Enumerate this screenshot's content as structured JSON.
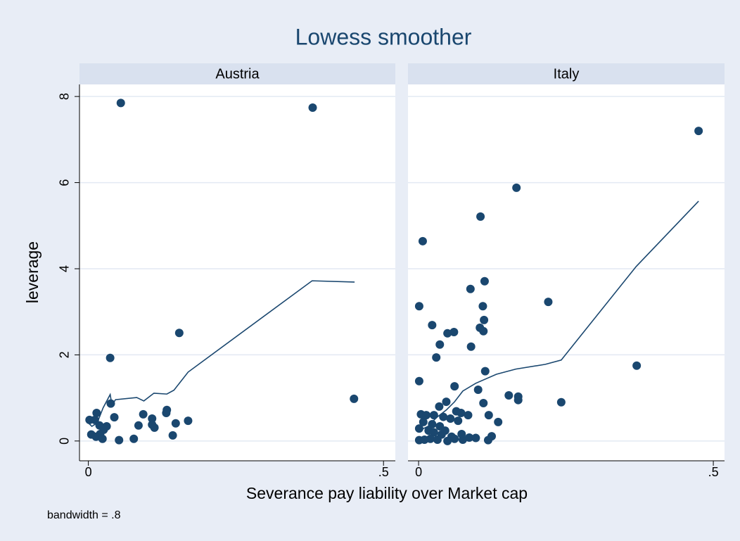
{
  "title": "Lowess smoother",
  "xlabel": "Severance pay liability over Market cap",
  "ylabel": "leverage",
  "note": "bandwidth = .8",
  "chart_data": [
    {
      "type": "scatter",
      "panel_title": "Austria",
      "xlim": [
        -0.015,
        0.52
      ],
      "ylim": [
        -0.46,
        8.28
      ],
      "xticks": [
        0,
        {
          "value": 0.5,
          "label": ".5"
        }
      ],
      "yticks": [
        0,
        2,
        4,
        6,
        8
      ],
      "grid": true,
      "series": [
        {
          "type": "scatter",
          "color": "#1a476f",
          "x": [
            0.055,
            0.38,
            0.154,
            0.037,
            0.45,
            0.002,
            0.014,
            0.011,
            0.038,
            0.044,
            0.031,
            0.019,
            0.026,
            0.02,
            0.005,
            0.013,
            0.024,
            0.052,
            0.077,
            0.085,
            0.093,
            0.108,
            0.108,
            0.112,
            0.133,
            0.132,
            0.148,
            0.143,
            0.169
          ],
          "values": [
            7.85,
            7.74,
            2.51,
            1.93,
            0.98,
            0.49,
            0.65,
            0.49,
            0.87,
            0.55,
            0.34,
            0.36,
            0.26,
            0.16,
            0.15,
            0.1,
            0.05,
            0.02,
            0.05,
            0.36,
            0.62,
            0.52,
            0.38,
            0.31,
            0.72,
            0.65,
            0.41,
            0.13,
            0.47
          ]
        },
        {
          "type": "line",
          "color": "#1a476f",
          "x": [
            0.0,
            0.006,
            0.015,
            0.025,
            0.037,
            0.04,
            0.046,
            0.082,
            0.094,
            0.111,
            0.133,
            0.145,
            0.169,
            0.379,
            0.451
          ],
          "values": [
            0.42,
            0.34,
            0.42,
            0.77,
            1.08,
            0.83,
            0.96,
            1.01,
            0.93,
            1.11,
            1.09,
            1.18,
            1.6,
            3.72,
            3.69
          ]
        }
      ]
    },
    {
      "type": "scatter",
      "panel_title": "Italy",
      "xlim": [
        -0.018,
        0.519
      ],
      "ylim": [
        -0.46,
        8.28
      ],
      "xticks": [
        0,
        {
          "value": 0.5,
          "label": ".5"
        }
      ],
      "yticks": [
        0,
        2,
        4,
        6,
        8
      ],
      "grid": true,
      "series": [
        {
          "type": "scatter",
          "color": "#1a476f",
          "x": [
            0.475,
            0.166,
            0.105,
            0.007,
            0.112,
            0.088,
            0.001,
            0.109,
            0.22,
            0.023,
            0.049,
            0.06,
            0.11,
            0.104,
            0.111,
            0.036,
            0.089,
            0.03,
            0.37,
            0.113,
            0.001,
            0.061,
            0.101,
            0.153,
            0.169,
            0.169,
            0.242,
            0.11,
            0.047,
            0.004,
            0.013,
            0.026,
            0.035,
            0.064,
            0.072,
            0.084,
            0.119,
            0.135,
            0.042,
            0.054,
            0.067,
            0.008,
            0.023,
            0.036,
            0.001,
            0.017,
            0.026,
            0.039,
            0.045,
            0.056,
            0.073,
            0.086,
            0.097,
            0.124,
            0.118,
            0.001,
            0.01,
            0.02,
            0.032,
            0.049,
            0.061,
            0.075
          ],
          "values": [
            7.2,
            5.88,
            5.21,
            4.64,
            3.71,
            3.53,
            3.13,
            3.13,
            3.23,
            2.69,
            2.5,
            2.53,
            2.55,
            2.63,
            2.81,
            2.24,
            2.19,
            1.94,
            1.75,
            1.62,
            1.39,
            1.27,
            1.19,
            1.06,
            1.03,
            0.95,
            0.9,
            0.88,
            0.91,
            0.62,
            0.6,
            0.6,
            0.8,
            0.69,
            0.65,
            0.6,
            0.6,
            0.44,
            0.56,
            0.52,
            0.47,
            0.44,
            0.39,
            0.34,
            0.29,
            0.24,
            0.2,
            0.15,
            0.24,
            0.1,
            0.16,
            0.08,
            0.07,
            0.11,
            0.02,
            0.02,
            0.03,
            0.05,
            0.03,
            0.0,
            0.05,
            0.03
          ]
        },
        {
          "type": "line",
          "color": "#1a476f",
          "x": [
            0.001,
            0.016,
            0.03,
            0.047,
            0.061,
            0.075,
            0.097,
            0.132,
            0.165,
            0.215,
            0.242,
            0.369,
            0.475
          ],
          "values": [
            0.24,
            0.34,
            0.54,
            0.72,
            0.91,
            1.16,
            1.34,
            1.55,
            1.67,
            1.78,
            1.88,
            4.05,
            5.57
          ]
        }
      ]
    }
  ]
}
